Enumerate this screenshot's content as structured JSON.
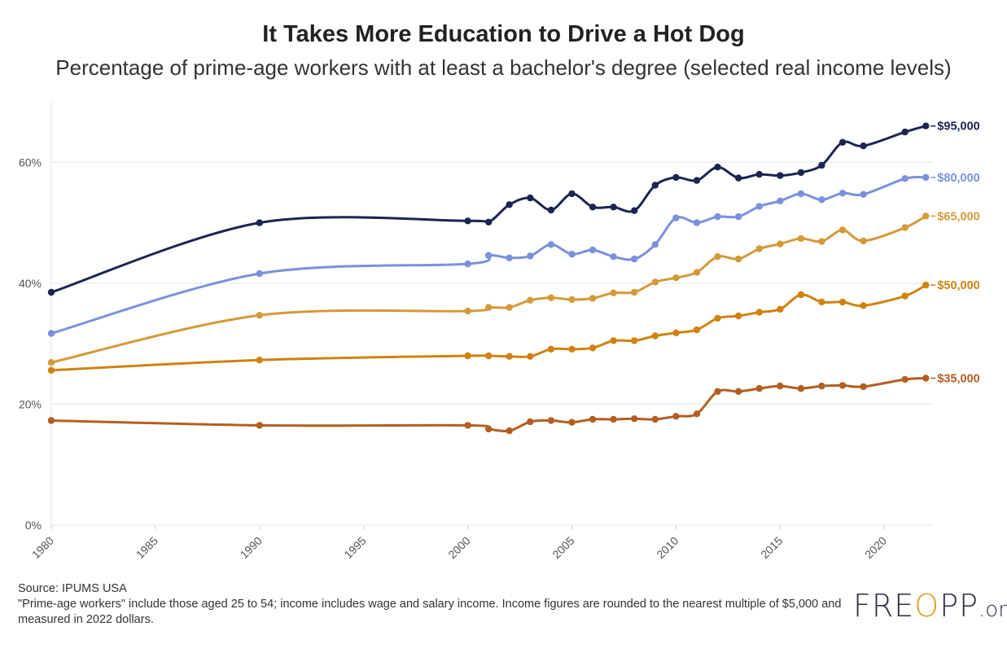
{
  "header": {
    "title": "It Takes More Education to Drive a Hot Dog",
    "subtitle": "Percentage of prime-age workers with at least a bachelor's degree (selected real income levels)"
  },
  "footer": {
    "source": "Source: IPUMS USA",
    "note": "\"Prime-age workers\" include those aged 25 to 54; income includes wage and salary income. Income figures are rounded to the nearest multiple of $5,000 and measured in 2022 dollars."
  },
  "logo": {
    "main_left": "FRE",
    "main_mark": "O",
    "main_right": "PP",
    "suffix": ".org"
  },
  "colors": {
    "grid": "#e6e6e6",
    "axis_text": "#555555"
  },
  "chart_data": {
    "type": "line",
    "x_ticks": [
      1980,
      1985,
      1990,
      1995,
      2000,
      2005,
      2010,
      2015,
      2020
    ],
    "y_ticks": [
      0,
      20,
      40,
      60
    ],
    "y_tick_labels": [
      "0%",
      "20%",
      "40%",
      "60%"
    ],
    "xlim": [
      1980,
      2022.3
    ],
    "ylim": [
      0,
      70
    ],
    "x": [
      1980,
      1990,
      2000,
      2001,
      2002,
      2003,
      2004,
      2005,
      2006,
      2007,
      2008,
      2009,
      2010,
      2011,
      2012,
      2013,
      2014,
      2015,
      2016,
      2017,
      2018,
      2019,
      2021,
      2022
    ],
    "series": [
      {
        "name": "$95,000",
        "color": "#1c2551",
        "values": [
          38.5,
          50.0,
          50.3,
          50.1,
          53.0,
          54.1,
          52.1,
          54.8,
          52.6,
          52.6,
          52.0,
          56.2,
          57.5,
          57.0,
          59.2,
          57.4,
          58.0,
          57.8,
          58.3,
          59.5,
          63.3,
          62.7,
          65.0,
          66.0
        ]
      },
      {
        "name": "$80,000",
        "color": "#7b91de",
        "values": [
          31.7,
          41.6,
          43.2,
          44.6,
          44.2,
          44.5,
          46.4,
          44.8,
          45.5,
          44.4,
          44.0,
          46.4,
          50.8,
          50.0,
          51.0,
          51.0,
          52.7,
          53.6,
          54.8,
          53.8,
          54.9,
          54.7,
          57.3,
          57.5
        ]
      },
      {
        "name": "$65,000",
        "color": "#d49a3a",
        "values": [
          26.9,
          34.7,
          35.4,
          36.0,
          36.0,
          37.2,
          37.6,
          37.3,
          37.5,
          38.4,
          38.5,
          40.2,
          40.9,
          41.8,
          44.4,
          44.0,
          45.7,
          46.5,
          47.4,
          46.9,
          48.8,
          47.0,
          49.2,
          51.1
        ]
      },
      {
        "name": "$50,000",
        "color": "#d08210",
        "values": [
          25.6,
          27.3,
          28.0,
          28.0,
          27.9,
          27.9,
          29.1,
          29.1,
          29.3,
          30.5,
          30.5,
          31.3,
          31.8,
          32.3,
          34.2,
          34.6,
          35.2,
          35.7,
          38.1,
          36.9,
          36.9,
          36.3,
          37.9,
          39.7
        ]
      },
      {
        "name": "$35,000",
        "color": "#b45e22",
        "values": [
          17.3,
          16.5,
          16.5,
          15.9,
          15.6,
          17.1,
          17.3,
          17.0,
          17.5,
          17.5,
          17.6,
          17.5,
          18.0,
          18.4,
          22.1,
          22.1,
          22.6,
          23.0,
          22.6,
          23.0,
          23.1,
          22.9,
          24.1,
          24.3
        ]
      }
    ]
  }
}
